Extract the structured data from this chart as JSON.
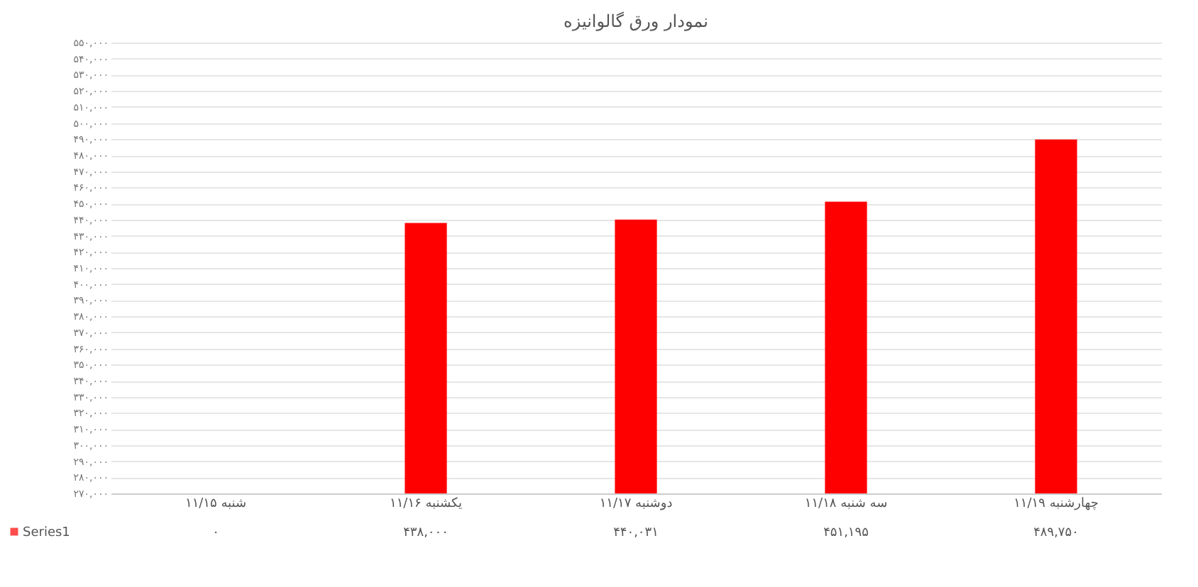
{
  "chart_data": {
    "type": "bar",
    "title": "نمودار ورق گالوانیزه",
    "categories": [
      "شنبه ۱۱/۱۵",
      "یکشنبه ۱۱/۱۶",
      "دوشنبه ۱۱/۱۷",
      "سه شنبه ۱۱/۱۸",
      "چهارشنبه ۱۱/۱۹"
    ],
    "series": [
      {
        "name": "Series1",
        "color": "#ff0000",
        "values": [
          null,
          438000,
          440031,
          451195,
          489750
        ],
        "value_labels": [
          "۰",
          "۴۳۸,۰۰۰",
          "۴۴۰,۰۳۱",
          "۴۵۱,۱۹۵",
          "۴۸۹,۷۵۰"
        ]
      }
    ],
    "ylim": [
      270000,
      550000
    ],
    "yticks": [
      {
        "value": 270000,
        "label": "۲۷۰,۰۰۰"
      },
      {
        "value": 280000,
        "label": "۲۸۰,۰۰۰"
      },
      {
        "value": 290000,
        "label": "۲۹۰,۰۰۰"
      },
      {
        "value": 300000,
        "label": "۳۰۰,۰۰۰"
      },
      {
        "value": 310000,
        "label": "۳۱۰,۰۰۰"
      },
      {
        "value": 320000,
        "label": "۳۲۰,۰۰۰"
      },
      {
        "value": 330000,
        "label": "۳۳۰,۰۰۰"
      },
      {
        "value": 340000,
        "label": "۳۴۰,۰۰۰"
      },
      {
        "value": 350000,
        "label": "۳۵۰,۰۰۰"
      },
      {
        "value": 360000,
        "label": "۳۶۰,۰۰۰"
      },
      {
        "value": 370000,
        "label": "۳۷۰,۰۰۰"
      },
      {
        "value": 380000,
        "label": "۳۸۰,۰۰۰"
      },
      {
        "value": 390000,
        "label": "۳۹۰,۰۰۰"
      },
      {
        "value": 400000,
        "label": "۴۰۰,۰۰۰"
      },
      {
        "value": 410000,
        "label": "۴۱۰,۰۰۰"
      },
      {
        "value": 420000,
        "label": "۴۲۰,۰۰۰"
      },
      {
        "value": 430000,
        "label": "۴۳۰,۰۰۰"
      },
      {
        "value": 440000,
        "label": "۴۴۰,۰۰۰"
      },
      {
        "value": 450000,
        "label": "۴۵۰,۰۰۰"
      },
      {
        "value": 460000,
        "label": "۴۶۰,۰۰۰"
      },
      {
        "value": 470000,
        "label": "۴۷۰,۰۰۰"
      },
      {
        "value": 480000,
        "label": "۴۸۰,۰۰۰"
      },
      {
        "value": 490000,
        "label": "۴۹۰,۰۰۰"
      },
      {
        "value": 500000,
        "label": "۵۰۰,۰۰۰"
      },
      {
        "value": 510000,
        "label": "۵۱۰,۰۰۰"
      },
      {
        "value": 520000,
        "label": "۵۲۰,۰۰۰"
      },
      {
        "value": 530000,
        "label": "۵۳۰,۰۰۰"
      },
      {
        "value": 540000,
        "label": "۵۴۰,۰۰۰"
      },
      {
        "value": 550000,
        "label": "۵۵۰,۰۰۰"
      }
    ],
    "grid": "y",
    "legend": "bottom left"
  }
}
